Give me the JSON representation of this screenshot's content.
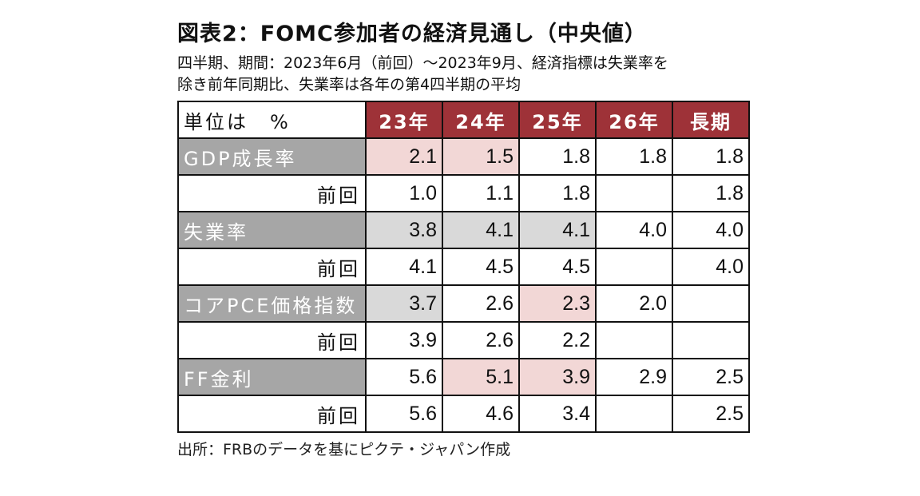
{
  "title": "図表2：FOMC参加者の経済見通し（中央値）",
  "subtitle": [
    "四半期、期間：2023年6月（前回）～2023年9月、経済指標は失業率を",
    "除き前年同期比、失業率は各年の第4四半期の平均"
  ],
  "table": {
    "unit_label": "単位は　%",
    "columns": [
      "23年",
      "24年",
      "25年",
      "26年",
      "長期"
    ],
    "rows": [
      {
        "label": "GDP成長率",
        "kind": "main",
        "values": [
          "2.1",
          "1.5",
          "1.8",
          "1.8",
          "1.8"
        ],
        "shading": [
          "pink",
          "pink",
          "",
          "",
          ""
        ]
      },
      {
        "label": "前回",
        "kind": "prev",
        "values": [
          "1.0",
          "1.1",
          "1.8",
          "",
          "1.8"
        ],
        "shading": [
          "",
          "",
          "",
          "",
          ""
        ]
      },
      {
        "label": "失業率",
        "kind": "main",
        "values": [
          "3.8",
          "4.1",
          "4.1",
          "4.0",
          "4.0"
        ],
        "shading": [
          "gray",
          "gray",
          "gray",
          "",
          ""
        ]
      },
      {
        "label": "前回",
        "kind": "prev",
        "values": [
          "4.1",
          "4.5",
          "4.5",
          "",
          "4.0"
        ],
        "shading": [
          "",
          "",
          "",
          "",
          ""
        ]
      },
      {
        "label": "コアPCE価格指数",
        "kind": "main",
        "values": [
          "3.7",
          "2.6",
          "2.3",
          "2.0",
          ""
        ],
        "shading": [
          "gray",
          "",
          "pink",
          "",
          ""
        ]
      },
      {
        "label": "前回",
        "kind": "prev",
        "values": [
          "3.9",
          "2.6",
          "2.2",
          "",
          ""
        ],
        "shading": [
          "",
          "",
          "",
          "",
          ""
        ]
      },
      {
        "label": "FF金利",
        "kind": "main",
        "values": [
          "5.6",
          "5.1",
          "3.9",
          "2.9",
          "2.5"
        ],
        "shading": [
          "",
          "pink",
          "pink",
          "",
          ""
        ]
      },
      {
        "label": "前回",
        "kind": "prev",
        "values": [
          "5.6",
          "4.6",
          "3.4",
          "",
          "2.5"
        ],
        "shading": [
          "",
          "",
          "",
          "",
          ""
        ]
      }
    ]
  },
  "source": "出所：FRBのデータを基にピクテ・ジャパン作成",
  "colors": {
    "header_bg": "#9e3238",
    "label_bg": "#a6a6a6",
    "pink": "#f2d7d6",
    "gray": "#d9d9d9"
  }
}
